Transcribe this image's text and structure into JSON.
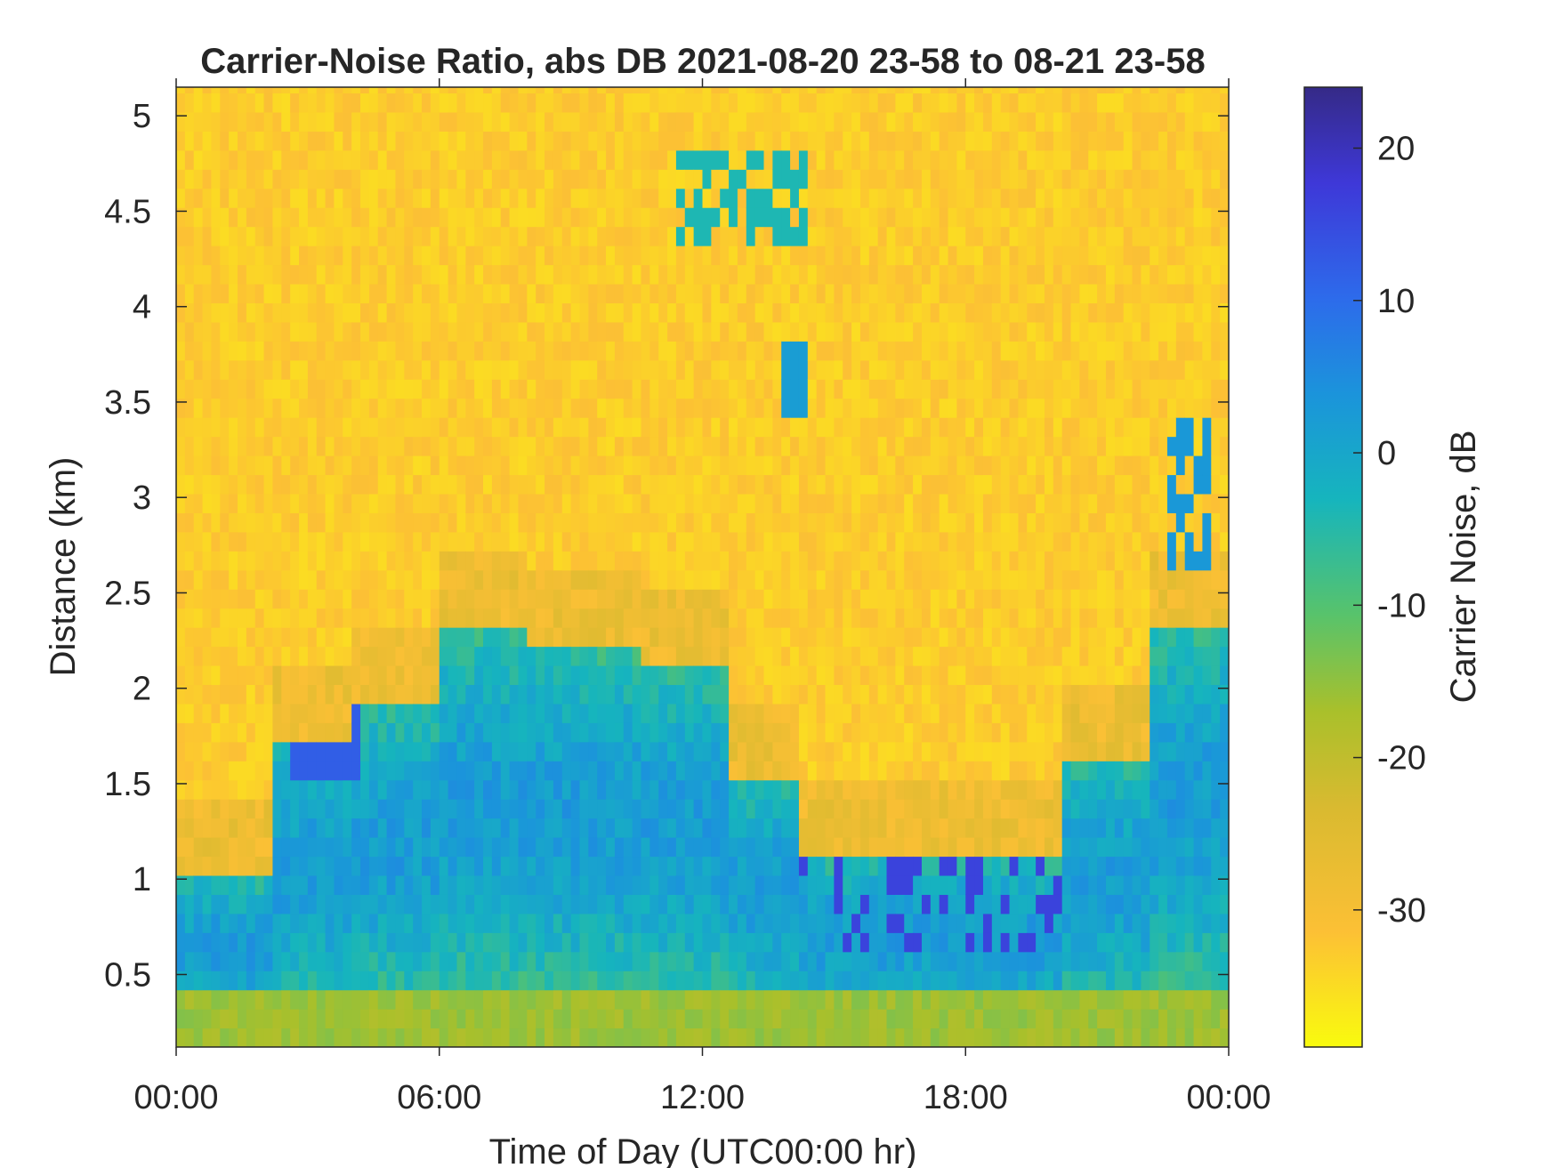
{
  "chart_data": {
    "type": "heatmap",
    "title": "Carrier-Noise Ratio, abs DB 2021-08-20 23-58 to 08-21 23-58",
    "xlabel": "Time of Day (UTC00:00 hr)",
    "ylabel": "Distance (km)",
    "x_unit": "hours",
    "xlim": [
      0,
      24
    ],
    "ylim": [
      0.12,
      5.15
    ],
    "x_ticks": [
      0,
      6,
      12,
      18,
      24
    ],
    "x_tick_labels": [
      "00:00",
      "06:00",
      "12:00",
      "18:00",
      "00:00"
    ],
    "y_ticks": [
      0.5,
      1,
      1.5,
      2,
      2.5,
      3,
      3.5,
      4,
      4.5,
      5
    ],
    "y_tick_labels": [
      "0.5",
      "1",
      "1.5",
      "2",
      "2.5",
      "3",
      "3.5",
      "4",
      "4.5",
      "5"
    ],
    "grid": false,
    "colorbar": {
      "label": "Carrier Noise, dB",
      "range": [
        -39,
        24
      ],
      "ticks": [
        20,
        10,
        0,
        -10,
        -20,
        -30
      ],
      "tick_labels": [
        "20",
        "10",
        "0",
        "-10",
        "-20",
        "-30"
      ],
      "colormap": "parula reversed (yellow = low, dark blue = high)",
      "colormap_stops": [
        "#F9FB0E",
        "#FCC035",
        "#D9BA30",
        "#A9C02B",
        "#58C36B",
        "#16B5BD",
        "#1B94DB",
        "#2D6BEB",
        "#3E38D8",
        "#352A87"
      ]
    },
    "row_step_km": 0.1,
    "time_step_hr": 0.2,
    "regions_description_removed": true,
    "background_value_db": -33,
    "distance_profile": [
      {
        "distance_km": 0.2,
        "value_db": -16
      },
      {
        "distance_km": 0.5,
        "value_db": -11
      },
      {
        "distance_km": 0.8,
        "value_db": 2
      },
      {
        "distance_km": 1.0,
        "value_db": 1
      },
      {
        "distance_km": 1.5,
        "value_db": -7
      },
      {
        "distance_km": 2.0,
        "value_db": -24
      },
      {
        "distance_km": 2.5,
        "value_db": -33
      },
      {
        "distance_km": 5.0,
        "value_db": -33
      }
    ]
  }
}
